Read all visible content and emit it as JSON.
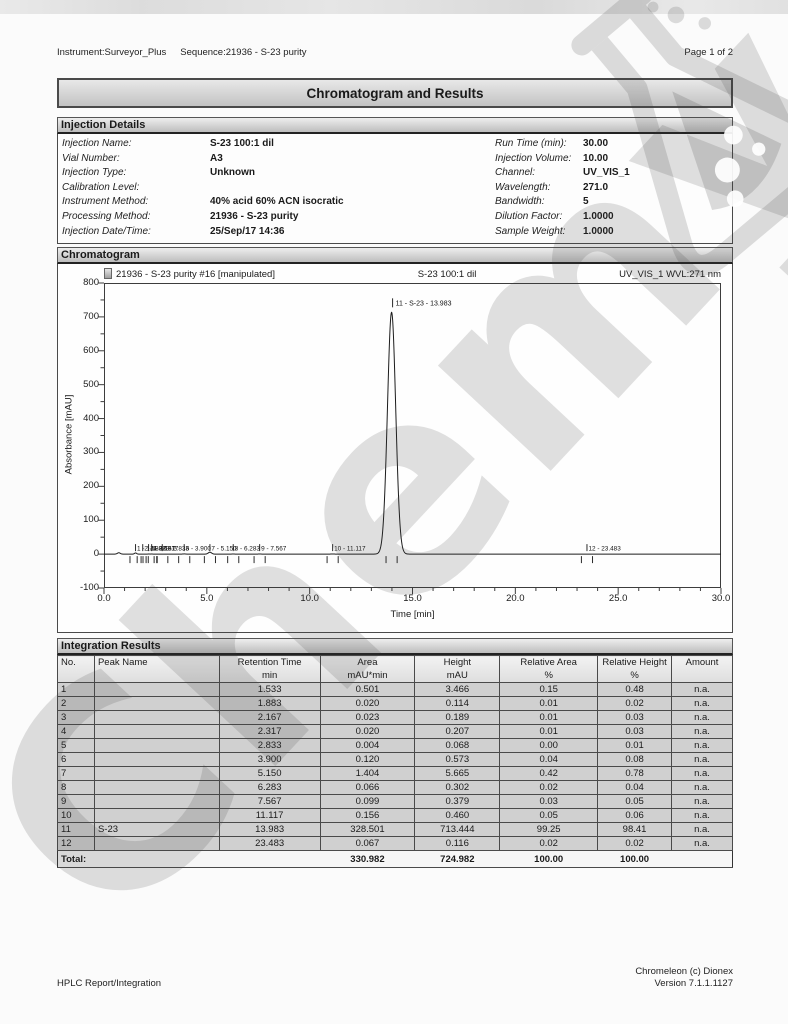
{
  "page_header": {
    "instrument": "Instrument:Surveyor_Plus",
    "sequence": "Sequence:21936 - S-23 purity",
    "page": "Page 1 of 2"
  },
  "title": "Chromatogram and Results",
  "injection": {
    "section_title": "Injection Details",
    "left": [
      {
        "label": "Injection Name:",
        "value": "S-23 100:1 dil"
      },
      {
        "label": "Vial Number:",
        "value": "A3"
      },
      {
        "label": "Injection Type:",
        "value": "Unknown"
      },
      {
        "label": "Calibration Level:",
        "value": ""
      },
      {
        "label": "Instrument Method:",
        "value": "40% acid 60% ACN isocratic"
      },
      {
        "label": "Processing Method:",
        "value": "21936 - S-23 purity"
      },
      {
        "label": "Injection Date/Time:",
        "value": "25/Sep/17 14:36"
      }
    ],
    "right": [
      {
        "label": "Run Time (min):",
        "value": "30.00"
      },
      {
        "label": "Injection Volume:",
        "value": "10.00"
      },
      {
        "label": "Channel:",
        "value": "UV_VIS_1"
      },
      {
        "label": "Wavelength:",
        "value": "271.0"
      },
      {
        "label": "Bandwidth:",
        "value": "5"
      },
      {
        "label": "Dilution Factor:",
        "value": "1.0000"
      },
      {
        "label": "Sample Weight:",
        "value": "1.0000"
      }
    ]
  },
  "chromatogram": {
    "section_title": "Chromatogram",
    "trace_title": "21936 - S-23 purity #16 [manipulated]",
    "sample_label": "S-23 100:1 dil",
    "channel_label": "UV_VIS_1 WVL:271 nm"
  },
  "chart_data": {
    "type": "line",
    "xlabel": "Time [min]",
    "ylabel": "Absorbance [mAU]",
    "xlim": [
      0.0,
      30.0
    ],
    "ylim": [
      -100,
      800
    ],
    "xticks": [
      0,
      5,
      10,
      15,
      20,
      25,
      30
    ],
    "xtick_labels": [
      "0.0",
      "5.0",
      "10.0",
      "15.0",
      "20.0",
      "25.0",
      "30.0"
    ],
    "yticks": [
      -100,
      0,
      100,
      200,
      300,
      400,
      500,
      600,
      700,
      800
    ],
    "ytick_labels": [
      "-100",
      "0",
      "100",
      "200",
      "300",
      "400",
      "500",
      "600",
      "700",
      "800"
    ],
    "grid": false,
    "legend": false,
    "peaks": [
      {
        "no": "",
        "name": "",
        "rt": 0.72,
        "height_mau": 4.0,
        "sigma": 0.07,
        "label": ""
      },
      {
        "no": "1",
        "name": "",
        "rt": 1.533,
        "height_mau": 3.466,
        "sigma": 0.05,
        "label": "1 - 1.533"
      },
      {
        "no": "2",
        "name": "",
        "rt": 1.883,
        "height_mau": 0.114,
        "sigma": 0.05,
        "label": "2 - 1.883"
      },
      {
        "no": "3",
        "name": "",
        "rt": 2.167,
        "height_mau": 0.189,
        "sigma": 0.05,
        "label": "3 - 2.167"
      },
      {
        "no": "4",
        "name": "",
        "rt": 2.317,
        "height_mau": 0.207,
        "sigma": 0.05,
        "label": "4 - 2.317"
      },
      {
        "no": "5",
        "name": "",
        "rt": 2.833,
        "height_mau": 0.068,
        "sigma": 0.05,
        "label": "5 - 2.833"
      },
      {
        "no": "6",
        "name": "",
        "rt": 3.9,
        "height_mau": 0.573,
        "sigma": 0.06,
        "label": "6 - 3.900"
      },
      {
        "no": "7",
        "name": "",
        "rt": 5.15,
        "height_mau": 5.665,
        "sigma": 0.08,
        "label": "7 - 5.150"
      },
      {
        "no": "8",
        "name": "",
        "rt": 6.283,
        "height_mau": 0.302,
        "sigma": 0.06,
        "label": "8 - 6.283"
      },
      {
        "no": "9",
        "name": "",
        "rt": 7.567,
        "height_mau": 0.379,
        "sigma": 0.06,
        "label": "9 - 7.567"
      },
      {
        "no": "10",
        "name": "",
        "rt": 11.117,
        "height_mau": 0.46,
        "sigma": 0.07,
        "label": "10 - 11.117"
      },
      {
        "no": "11",
        "name": "S-23",
        "rt": 13.983,
        "height_mau": 713.444,
        "sigma": 0.2,
        "label": "11 - S-23 - 13.983",
        "label_top": true
      },
      {
        "no": "12",
        "name": "",
        "rt": 23.483,
        "height_mau": 0.116,
        "sigma": 0.07,
        "label": "12 - 23.483"
      }
    ]
  },
  "integration": {
    "section_title": "Integration Results",
    "columns": [
      {
        "label": "No.",
        "unit": ""
      },
      {
        "label": "Peak Name",
        "unit": ""
      },
      {
        "label": "Retention Time",
        "unit": "min"
      },
      {
        "label": "Area",
        "unit": "mAU*min"
      },
      {
        "label": "Height",
        "unit": "mAU"
      },
      {
        "label": "Relative Area",
        "unit": "%"
      },
      {
        "label": "Relative Height",
        "unit": "%"
      },
      {
        "label": "Amount",
        "unit": ""
      }
    ],
    "rows": [
      [
        "1",
        "",
        "1.533",
        "0.501",
        "3.466",
        "0.15",
        "0.48",
        "n.a."
      ],
      [
        "2",
        "",
        "1.883",
        "0.020",
        "0.114",
        "0.01",
        "0.02",
        "n.a."
      ],
      [
        "3",
        "",
        "2.167",
        "0.023",
        "0.189",
        "0.01",
        "0.03",
        "n.a."
      ],
      [
        "4",
        "",
        "2.317",
        "0.020",
        "0.207",
        "0.01",
        "0.03",
        "n.a."
      ],
      [
        "5",
        "",
        "2.833",
        "0.004",
        "0.068",
        "0.00",
        "0.01",
        "n.a."
      ],
      [
        "6",
        "",
        "3.900",
        "0.120",
        "0.573",
        "0.04",
        "0.08",
        "n.a."
      ],
      [
        "7",
        "",
        "5.150",
        "1.404",
        "5.665",
        "0.42",
        "0.78",
        "n.a."
      ],
      [
        "8",
        "",
        "6.283",
        "0.066",
        "0.302",
        "0.02",
        "0.04",
        "n.a."
      ],
      [
        "9",
        "",
        "7.567",
        "0.099",
        "0.379",
        "0.03",
        "0.05",
        "n.a."
      ],
      [
        "10",
        "",
        "11.117",
        "0.156",
        "0.460",
        "0.05",
        "0.06",
        "n.a."
      ],
      [
        "11",
        "S-23",
        "13.983",
        "328.501",
        "713.444",
        "99.25",
        "98.41",
        "n.a."
      ],
      [
        "12",
        "",
        "23.483",
        "0.067",
        "0.116",
        "0.02",
        "0.02",
        "n.a."
      ]
    ],
    "total": {
      "label": "Total:",
      "retention_time": "",
      "area": "330.982",
      "height": "724.982",
      "relative_area": "100.00",
      "relative_height": "100.00",
      "amount": ""
    }
  },
  "footer": {
    "left": "HPLC Report/Integration",
    "right_line1": "Chromeleon (c) Dionex",
    "right_line2": "Version 7.1.1.1127"
  },
  "watermark": {
    "text": "Chemy"
  }
}
